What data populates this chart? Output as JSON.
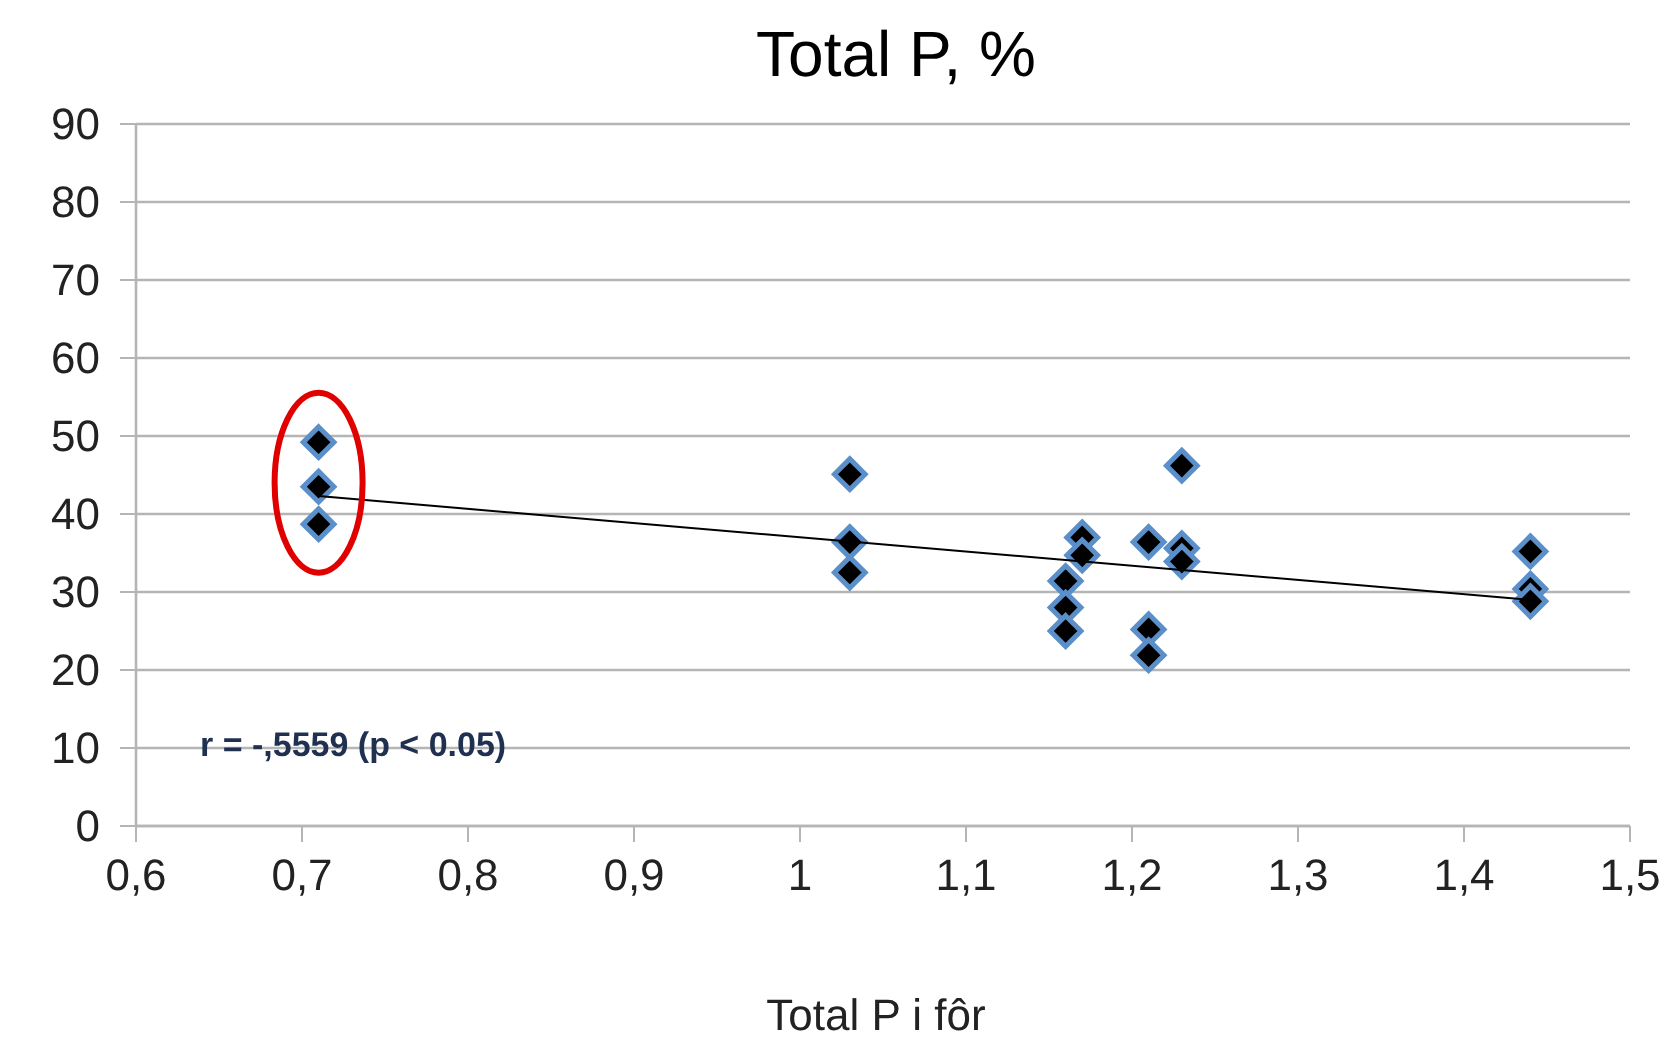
{
  "chart_data": {
    "type": "scatter",
    "title": "Total P, %",
    "xlabel": "Total P i fôr",
    "xlim": [
      0.6,
      1.5
    ],
    "xticks": [
      {
        "value": 0.6,
        "label": "0,6"
      },
      {
        "value": 0.7,
        "label": "0,7"
      },
      {
        "value": 0.8,
        "label": "0,8"
      },
      {
        "value": 0.9,
        "label": "0,9"
      },
      1,
      {
        "value": 1.1,
        "label": "1,1"
      },
      {
        "value": 1.2,
        "label": "1,2"
      },
      {
        "value": 1.3,
        "label": "1,3"
      },
      {
        "value": 1.4,
        "label": "1,4"
      },
      {
        "value": 1.5,
        "label": "1,5"
      }
    ],
    "ylim": [
      0,
      90
    ],
    "yticks": [
      0,
      10,
      20,
      30,
      40,
      50,
      60,
      70,
      80,
      90
    ],
    "grid": "y",
    "marker": "diamond",
    "series": [
      {
        "color": "#000000",
        "x": [
          0.71,
          0.71,
          0.71,
          1.03,
          1.03,
          1.03,
          1.16,
          1.16,
          1.16,
          1.17,
          1.17,
          1.21,
          1.21,
          1.21,
          1.23,
          1.23,
          1.23,
          1.44,
          1.44,
          1.44
        ],
        "values": [
          49.2,
          43.5,
          38.7,
          45.1,
          36.4,
          32.5,
          31.4,
          28,
          25,
          37,
          34.7,
          36.4,
          25.2,
          21.9,
          46.2,
          35.6,
          33.9,
          35.2,
          30.4,
          28.8
        ]
      },
      {
        "type": "line",
        "color": "#000000",
        "marker": "none",
        "x": [
          0.71,
          1.44
        ],
        "values": [
          42.3,
          29
        ]
      }
    ],
    "annotations": [
      "r = -,5559 (p < 0.05)"
    ]
  }
}
